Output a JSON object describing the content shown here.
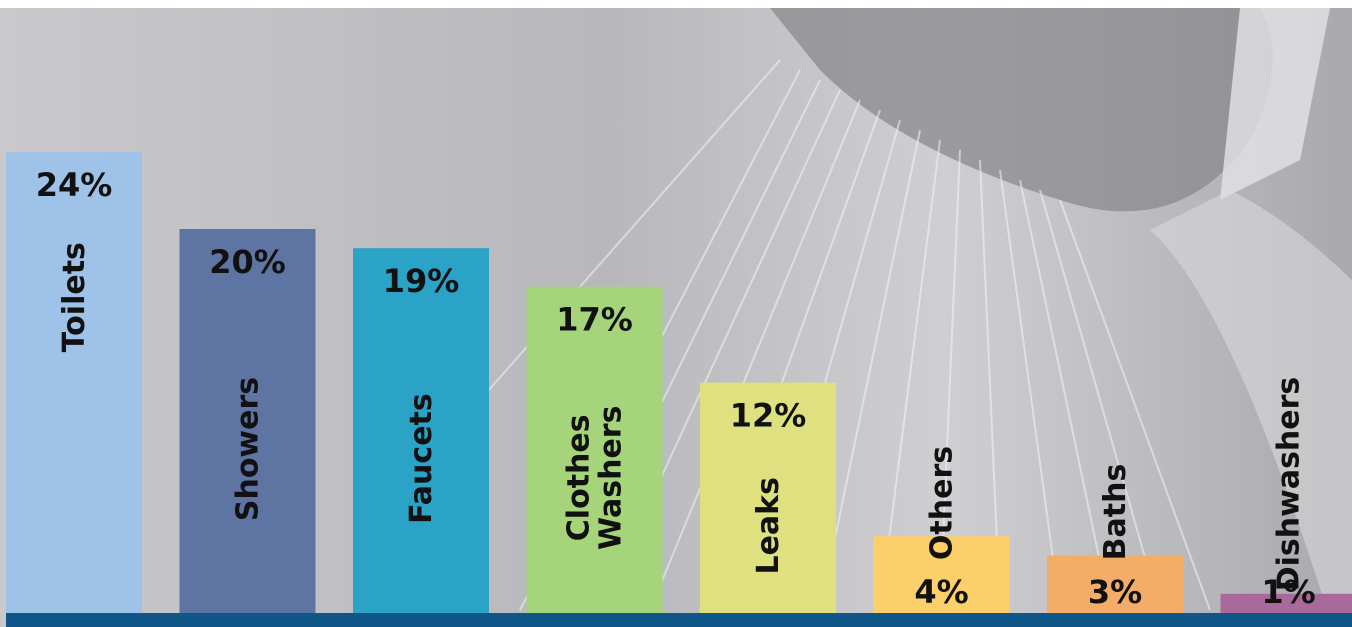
{
  "chart_data": {
    "type": "bar",
    "categories": [
      "Toilets",
      "Showers",
      "Faucets",
      "Clothes Washers",
      "Leaks",
      "Others",
      "Baths",
      "Dishwashers"
    ],
    "label_lines": [
      [
        "Toilets"
      ],
      [
        "Showers"
      ],
      [
        "Faucets"
      ],
      [
        "Clothes",
        "Washers"
      ],
      [
        "Leaks"
      ],
      [
        "Others"
      ],
      [
        "Baths"
      ],
      [
        "Dishwashers"
      ]
    ],
    "values": [
      24,
      20,
      19,
      17,
      12,
      4,
      3,
      1
    ],
    "value_labels": [
      "24%",
      "20%",
      "19%",
      "17%",
      "12%",
      "4%",
      "3%",
      "1%"
    ],
    "colors": [
      "#9fc3e8",
      "#5e74a3",
      "#2aa3c6",
      "#a6d47a",
      "#dfe07f",
      "#fbcf69",
      "#f3ad68",
      "#a8699b"
    ],
    "baseline_color": "#0e5788",
    "background": "shower head spraying water (photo)",
    "ylim": [
      0,
      27
    ],
    "grid": false,
    "legend": "none"
  }
}
